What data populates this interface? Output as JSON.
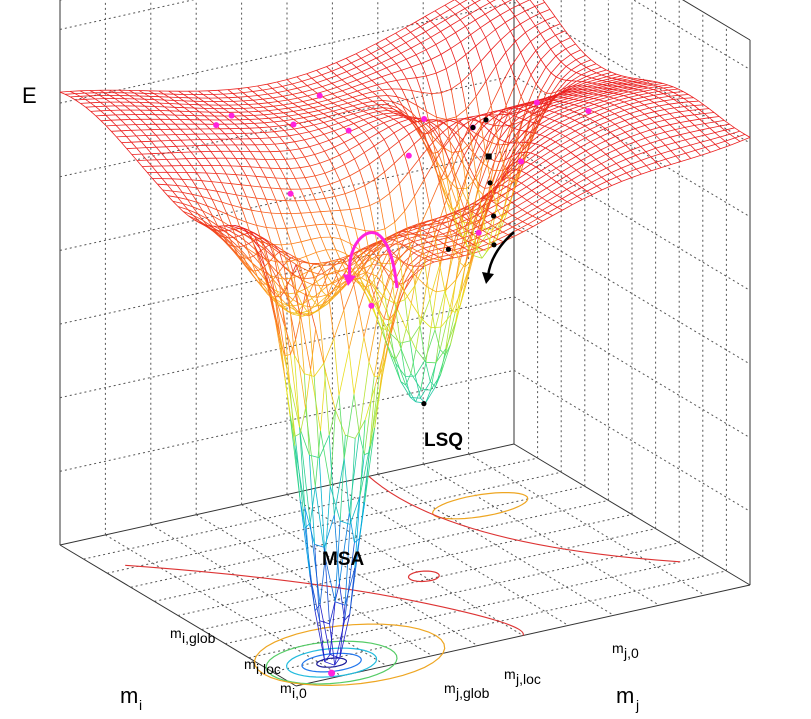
{
  "axes": {
    "z_label": "E",
    "x_label": "m",
    "x_label_sub": "i",
    "y_label": "m",
    "y_label_sub": "j"
  },
  "x_ticks": [
    {
      "base": "m",
      "sub": "i,glob"
    },
    {
      "base": "m",
      "sub": "i,loc"
    },
    {
      "base": "m",
      "sub": "i,0"
    }
  ],
  "y_ticks": [
    {
      "base": "m",
      "sub": "j,glob"
    },
    {
      "base": "m",
      "sub": "j,loc"
    },
    {
      "base": "m",
      "sub": "j,0"
    }
  ],
  "annotations": {
    "global_min_label": "MSA",
    "local_min_label": "LSQ"
  },
  "colors": {
    "msa": "#ff22dd",
    "lsq": "#000000",
    "mesh_top": "#ff2a2a",
    "mesh_low": "#2222cc"
  },
  "path_points": {
    "msa_sample_count": 14,
    "lsq_sample_count": 8
  }
}
